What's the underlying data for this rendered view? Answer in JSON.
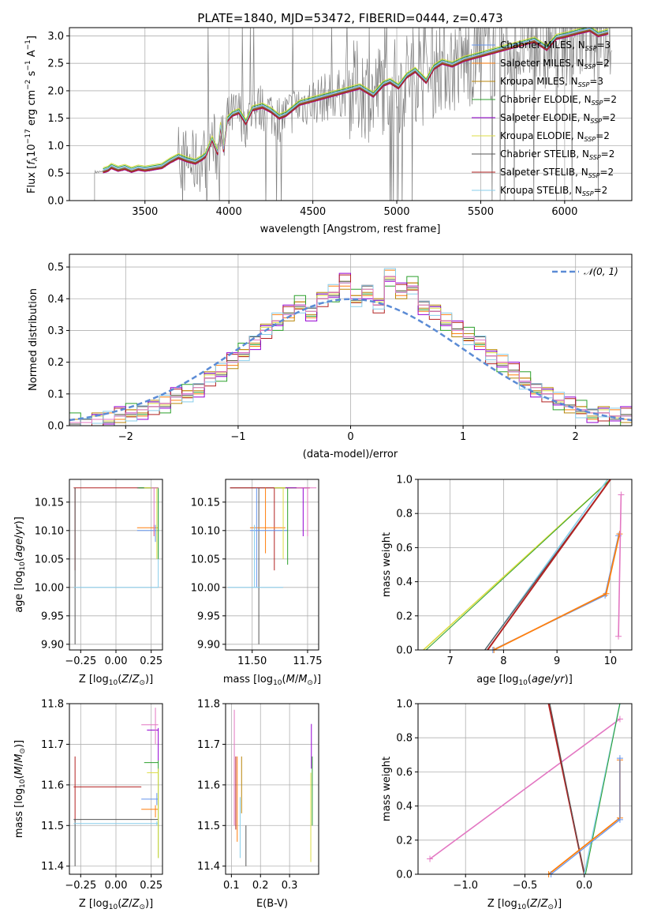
{
  "colors": {
    "chabrier_miles": "#6495ed",
    "salpeter_miles": "#ff7f0e",
    "kroupa_miles": "#b8860b",
    "chabrier_elodie": "#2ca02c",
    "salpeter_elodie": "#9400d3",
    "kroupa_elodie": "#dddd44",
    "chabrier_stelib": "#555555",
    "salpeter_stelib": "#b22222",
    "kroupa_stelib": "#87ceeb",
    "pink": "#e377c2",
    "gaussian": "#5b8bd5"
  },
  "chart_data": [
    {
      "id": "spectrum",
      "type": "line",
      "title": "PLATE=1840, MJD=53472, FIBERID=0444, z=0.473",
      "xlabel": "wavelength [Angstrom, rest frame]",
      "ylabel": "Flux [f_λ 10^-17 erg cm^-2 s^-1 A^-1]",
      "xlim": [
        3050,
        6400
      ],
      "ylim": [
        0,
        3.15
      ],
      "xticks": [
        "3500",
        "4000",
        "4500",
        "5000",
        "5500",
        "6000"
      ],
      "yticks": [
        "0.0",
        "0.5",
        "1.0",
        "1.5",
        "2.0",
        "2.5",
        "3.0"
      ],
      "legend_position": "upper right",
      "legend": [
        "Chabrier MILES, N_SSP=3",
        "Salpeter MILES, N_SSP=2",
        "Kroupa MILES, N_SSP=3",
        "Chabrier ELODIE, N_SSP=2",
        "Salpeter ELODIE, N_SSP=2",
        "Kroupa ELODIE, N_SSP=2",
        "Chabrier STELIB, N_SSP=2",
        "Salpeter STELIB, N_SSP=2",
        "Kroupa STELIB, N_SSP=2"
      ],
      "model_x": [
        3250,
        3280,
        3300,
        3340,
        3380,
        3420,
        3460,
        3500,
        3560,
        3600,
        3650,
        3700,
        3750,
        3800,
        3840,
        3860,
        3880,
        3900,
        3933,
        3950,
        3968,
        3990,
        4020,
        4060,
        4101,
        4140,
        4200,
        4250,
        4300,
        4340,
        4380,
        4420,
        4480,
        4540,
        4600,
        4660,
        4720,
        4780,
        4861,
        4920,
        4960,
        5010,
        5060,
        5110,
        5175,
        5220,
        5270,
        5330,
        5400,
        5460,
        5520,
        5580,
        5640,
        5700,
        5760,
        5820,
        5893,
        5950,
        6020,
        6080,
        6150,
        6200,
        6260
      ],
      "model_y": [
        0.52,
        0.55,
        0.6,
        0.55,
        0.58,
        0.53,
        0.57,
        0.55,
        0.58,
        0.6,
        0.7,
        0.78,
        0.72,
        0.68,
        0.75,
        0.8,
        0.95,
        1.1,
        0.85,
        1.35,
        0.9,
        1.45,
        1.55,
        1.6,
        1.4,
        1.65,
        1.7,
        1.62,
        1.5,
        1.55,
        1.65,
        1.75,
        1.8,
        1.85,
        1.9,
        1.95,
        2.0,
        2.05,
        1.9,
        2.1,
        2.15,
        2.05,
        2.25,
        2.35,
        2.15,
        2.4,
        2.5,
        2.45,
        2.55,
        2.6,
        2.65,
        2.7,
        2.75,
        2.8,
        2.85,
        2.9,
        2.75,
        2.95,
        3.0,
        3.05,
        3.1,
        3.0,
        3.05
      ]
    },
    {
      "id": "residuals",
      "type": "line",
      "xlabel": "(data-model)/error",
      "ylabel": "Normed distribution",
      "xlim": [
        -2.5,
        2.5
      ],
      "ylim": [
        0,
        0.54
      ],
      "xticks": [
        "−2",
        "−1",
        "0",
        "1",
        "2"
      ],
      "yticks": [
        "0.0",
        "0.1",
        "0.2",
        "0.3",
        "0.4",
        "0.5"
      ],
      "legend_position": "upper right",
      "legend": [
        "𝒩(0, 1)"
      ],
      "hist_x": [
        -2.5,
        -2.4,
        -2.3,
        -2.2,
        -2.1,
        -2.0,
        -1.9,
        -1.8,
        -1.7,
        -1.6,
        -1.5,
        -1.4,
        -1.3,
        -1.2,
        -1.1,
        -1.0,
        -0.9,
        -0.8,
        -0.7,
        -0.6,
        -0.5,
        -0.4,
        -0.3,
        -0.2,
        -0.1,
        0.0,
        0.1,
        0.2,
        0.3,
        0.4,
        0.5,
        0.6,
        0.7,
        0.8,
        0.9,
        1.0,
        1.1,
        1.2,
        1.3,
        1.4,
        1.5,
        1.6,
        1.7,
        1.8,
        1.9,
        2.0,
        2.1,
        2.2,
        2.3,
        2.4
      ],
      "hist_y": [
        0.01,
        0.01,
        0.02,
        0.02,
        0.03,
        0.04,
        0.05,
        0.06,
        0.07,
        0.09,
        0.1,
        0.12,
        0.15,
        0.17,
        0.2,
        0.23,
        0.27,
        0.3,
        0.33,
        0.35,
        0.38,
        0.36,
        0.4,
        0.42,
        0.45,
        0.4,
        0.43,
        0.38,
        0.47,
        0.42,
        0.44,
        0.38,
        0.36,
        0.33,
        0.3,
        0.28,
        0.27,
        0.22,
        0.2,
        0.17,
        0.14,
        0.12,
        0.1,
        0.08,
        0.06,
        0.05,
        0.04,
        0.04,
        0.03,
        0.03
      ]
    },
    {
      "id": "age-vs-Z",
      "type": "scatter",
      "xlabel": "Z [log10(Z/Z⊙)]",
      "ylabel": "age  [log10(age/yr)]",
      "xlim": [
        -0.33,
        0.33
      ],
      "ylim": [
        9.89,
        10.19
      ],
      "xticks": [
        "−0.25",
        "0.00",
        "0.25"
      ],
      "yticks": [
        "9.90",
        "9.95",
        "10.00",
        "10.05",
        "10.10",
        "10.15"
      ]
    },
    {
      "id": "age-vs-mass",
      "type": "scatter",
      "xlabel": "mass [log10(M/M⊙)]",
      "xlim": [
        11.38,
        11.8
      ],
      "ylim": [
        9.89,
        10.19
      ],
      "xticks": [
        "11.50",
        "11.75"
      ],
      "yticks": [
        "9.90",
        "9.95",
        "10.00",
        "10.05",
        "10.10",
        "10.15"
      ]
    },
    {
      "id": "massweight-vs-age",
      "type": "line",
      "xlabel": "age  [log10(age/yr)]",
      "ylabel": "mass weight",
      "xlim": [
        6.4,
        10.4
      ],
      "ylim": [
        0,
        1
      ],
      "xticks": [
        "7",
        "8",
        "9",
        "10"
      ],
      "yticks": [
        "0.0",
        "0.2",
        "0.4",
        "0.6",
        "0.8",
        "1.0"
      ]
    },
    {
      "id": "mass-vs-Z",
      "type": "scatter",
      "xlabel": "Z [log10(Z/Z⊙)]",
      "ylabel": "mass [log10(M/M⊙)]",
      "xlim": [
        -0.33,
        0.33
      ],
      "ylim": [
        11.38,
        11.8
      ],
      "xticks": [
        "−0.25",
        "0.00",
        "0.25"
      ],
      "yticks": [
        "11.4",
        "11.5",
        "11.6",
        "11.7",
        "11.8"
      ]
    },
    {
      "id": "mass-vs-EBV",
      "type": "scatter",
      "xlabel": "E(B-V)",
      "xlim": [
        0.08,
        0.4
      ],
      "ylim": [
        11.38,
        11.8
      ],
      "xticks": [
        "0.1",
        "0.2",
        "0.3"
      ],
      "yticks": [
        "11.4",
        "11.5",
        "11.6",
        "11.7",
        "11.8"
      ]
    },
    {
      "id": "massweight-vs-Z",
      "type": "line",
      "xlabel": "Z [log10(Z/Z⊙)]",
      "ylabel": "mass weight",
      "xlim": [
        -1.4,
        0.4
      ],
      "ylim": [
        0,
        1
      ],
      "xticks": [
        "−1.0",
        "−0.5",
        "0.0"
      ],
      "yticks": [
        "0.0",
        "0.2",
        "0.4",
        "0.6",
        "0.8",
        "1.0"
      ]
    }
  ]
}
